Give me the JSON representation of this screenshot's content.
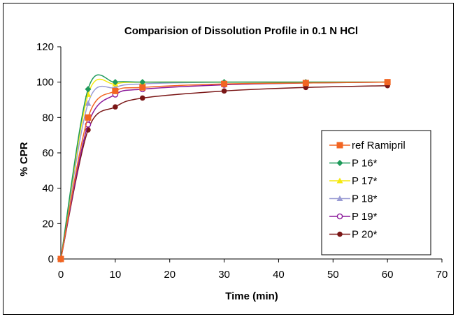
{
  "chart_data": {
    "type": "line",
    "title": "Comparision of Dissolution Profile in 0.1 N HCl",
    "xlabel": "Time (min)",
    "ylabel": "% CPR",
    "xlim": [
      0,
      70
    ],
    "ylim": [
      0,
      120
    ],
    "x_ticks": [
      0,
      10,
      20,
      30,
      40,
      50,
      60,
      70
    ],
    "y_ticks": [
      0,
      20,
      40,
      60,
      80,
      100,
      120
    ],
    "grid": false,
    "legend_position": "right",
    "x": [
      0,
      5,
      10,
      15,
      30,
      45,
      60
    ],
    "series": [
      {
        "name": "ref Ramipril",
        "color": "#f26522",
        "marker": "square",
        "values": [
          0,
          80,
          95,
          97,
          99,
          99.5,
          100
        ]
      },
      {
        "name": "P 16*",
        "color": "#1e9a5a",
        "marker": "diamond",
        "values": [
          0,
          96,
          100,
          100,
          100,
          100,
          100
        ]
      },
      {
        "name": "P 17*",
        "color": "#f5e90f",
        "marker": "triangle",
        "values": [
          0,
          93,
          99,
          100,
          100,
          100,
          100
        ]
      },
      {
        "name": "P 18*",
        "color": "#9a9cd4",
        "marker": "triangle",
        "values": [
          0,
          88,
          97,
          99,
          100,
          100,
          100
        ]
      },
      {
        "name": "P 19*",
        "color": "#8b1a9a",
        "marker": "open-circle",
        "values": [
          0,
          76,
          93,
          96,
          98.5,
          99.5,
          100
        ]
      },
      {
        "name": "P 20*",
        "color": "#7a1616",
        "marker": "filled-circle",
        "values": [
          0,
          73,
          86,
          91,
          95,
          97,
          98
        ]
      }
    ]
  }
}
